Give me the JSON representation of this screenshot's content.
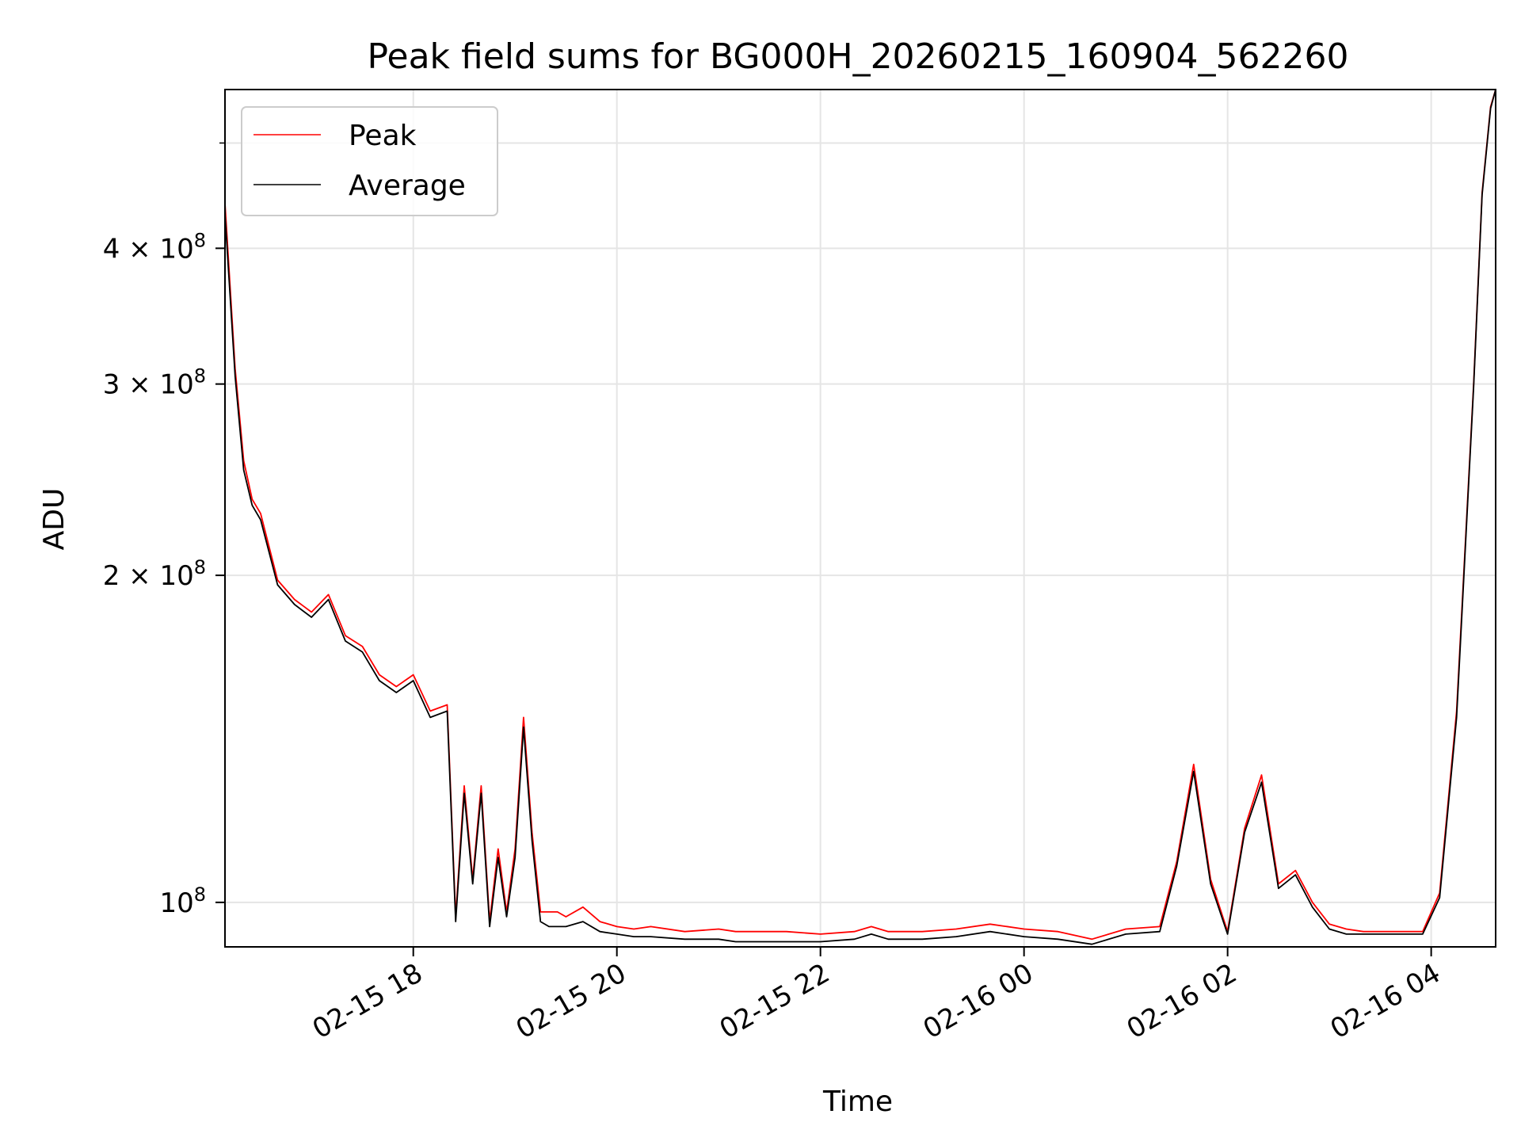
{
  "chart_data": {
    "type": "line",
    "title": "Peak field sums for BG000H_20260215_160904_562260",
    "xlabel": "Time",
    "ylabel": "ADU",
    "y_scale": "log",
    "ylim": [
      91000000,
      560000000
    ],
    "xlim": [
      "2026-02-15 16:09",
      "2026-02-16 04:38"
    ],
    "grid": true,
    "legend_position": "top-left",
    "x_ticks": [
      {
        "value": "2026-02-15 18:00",
        "label": "02-15 18"
      },
      {
        "value": "2026-02-15 20:00",
        "label": "02-15 20"
      },
      {
        "value": "2026-02-15 22:00",
        "label": "02-15 22"
      },
      {
        "value": "2026-02-16 00:00",
        "label": "02-16 00"
      },
      {
        "value": "2026-02-16 02:00",
        "label": "02-16 02"
      },
      {
        "value": "2026-02-16 04:00",
        "label": "02-16 04"
      }
    ],
    "y_ticks": [
      {
        "value": 100000000,
        "mantissa": "",
        "exponent": "8"
      },
      {
        "value": 200000000,
        "mantissa": "2",
        "exponent": "8"
      },
      {
        "value": 300000000,
        "mantissa": "3",
        "exponent": "8"
      },
      {
        "value": 400000000,
        "mantissa": "4",
        "exponent": "8"
      }
    ],
    "y_minor_ticks": [
      500000000
    ],
    "x": [
      "2026-02-15 16:09",
      "2026-02-15 16:15",
      "2026-02-15 16:20",
      "2026-02-15 16:25",
      "2026-02-15 16:30",
      "2026-02-15 16:40",
      "2026-02-15 16:50",
      "2026-02-15 17:00",
      "2026-02-15 17:10",
      "2026-02-15 17:20",
      "2026-02-15 17:30",
      "2026-02-15 17:40",
      "2026-02-15 17:50",
      "2026-02-15 18:00",
      "2026-02-15 18:10",
      "2026-02-15 18:20",
      "2026-02-15 18:25",
      "2026-02-15 18:30",
      "2026-02-15 18:35",
      "2026-02-15 18:40",
      "2026-02-15 18:45",
      "2026-02-15 18:50",
      "2026-02-15 18:55",
      "2026-02-15 19:00",
      "2026-02-15 19:05",
      "2026-02-15 19:10",
      "2026-02-15 19:15",
      "2026-02-15 19:20",
      "2026-02-15 19:25",
      "2026-02-15 19:30",
      "2026-02-15 19:40",
      "2026-02-15 19:50",
      "2026-02-15 20:00",
      "2026-02-15 20:10",
      "2026-02-15 20:20",
      "2026-02-15 20:40",
      "2026-02-15 21:00",
      "2026-02-15 21:10",
      "2026-02-15 21:20",
      "2026-02-15 21:40",
      "2026-02-15 22:00",
      "2026-02-15 22:20",
      "2026-02-15 22:30",
      "2026-02-15 22:40",
      "2026-02-15 23:00",
      "2026-02-15 23:20",
      "2026-02-15 23:40",
      "2026-02-16 00:00",
      "2026-02-16 00:20",
      "2026-02-16 00:40",
      "2026-02-16 01:00",
      "2026-02-16 01:20",
      "2026-02-16 01:30",
      "2026-02-16 01:40",
      "2026-02-16 01:50",
      "2026-02-16 02:00",
      "2026-02-16 02:10",
      "2026-02-16 02:20",
      "2026-02-16 02:30",
      "2026-02-16 02:40",
      "2026-02-16 02:50",
      "2026-02-16 03:00",
      "2026-02-16 03:10",
      "2026-02-16 03:20",
      "2026-02-16 03:40",
      "2026-02-16 03:55",
      "2026-02-16 04:05",
      "2026-02-16 04:15",
      "2026-02-16 04:25",
      "2026-02-16 04:30",
      "2026-02-16 04:35",
      "2026-02-16 04:38"
    ],
    "series": [
      {
        "name": "Peak",
        "color": "#ff0000",
        "values": [
          440000000,
          310000000,
          255000000,
          235000000,
          228000000,
          198000000,
          190000000,
          185000000,
          192000000,
          176000000,
          172000000,
          162000000,
          158000000,
          162000000,
          150000000,
          152000000,
          97000000,
          128000000,
          105000000,
          128000000,
          96000000,
          112000000,
          98000000,
          112000000,
          148000000,
          116000000,
          98000000,
          98000000,
          98000000,
          97000000,
          99000000,
          96000000,
          95000000,
          94500000,
          95000000,
          94000000,
          94500000,
          94000000,
          94000000,
          94000000,
          93500000,
          94000000,
          95000000,
          94000000,
          94000000,
          94500000,
          95500000,
          94500000,
          94000000,
          92500000,
          94500000,
          95000000,
          109000000,
          134000000,
          105000000,
          94000000,
          117000000,
          131000000,
          104000000,
          107000000,
          100000000,
          95500000,
          94500000,
          94000000,
          94000000,
          94000000,
          102000000,
          150000000,
          300000000,
          450000000,
          540000000,
          560000000
        ]
      },
      {
        "name": "Average",
        "color": "#000000",
        "values": [
          430000000,
          305000000,
          250000000,
          232000000,
          225000000,
          196000000,
          188000000,
          183000000,
          190000000,
          174000000,
          170000000,
          160000000,
          156000000,
          160000000,
          148000000,
          150000000,
          96000000,
          126000000,
          104000000,
          126000000,
          95000000,
          110000000,
          97000000,
          110000000,
          145000000,
          114000000,
          96000000,
          95000000,
          95000000,
          95000000,
          96000000,
          94000000,
          93500000,
          93000000,
          93000000,
          92500000,
          92500000,
          92000000,
          92000000,
          92000000,
          92000000,
          92500000,
          93500000,
          92500000,
          92500000,
          93000000,
          94000000,
          93000000,
          92500000,
          91500000,
          93500000,
          94000000,
          108000000,
          132000000,
          104000000,
          93500000,
          116000000,
          129000000,
          103000000,
          106000000,
          99000000,
          94500000,
          93500000,
          93500000,
          93500000,
          93500000,
          101000000,
          148000000,
          298000000,
          448000000,
          538000000,
          560000000
        ]
      }
    ]
  }
}
